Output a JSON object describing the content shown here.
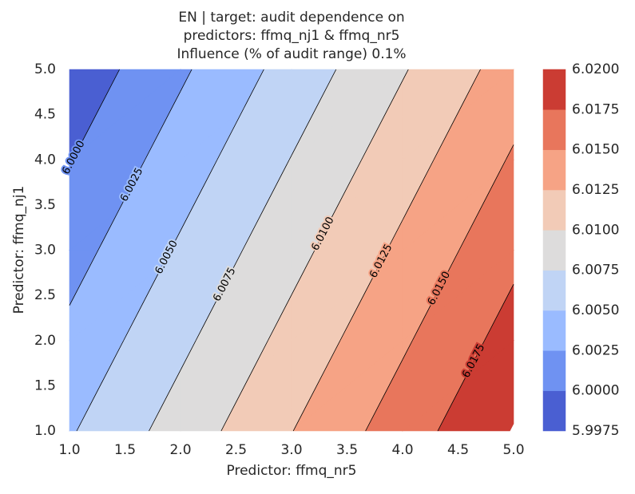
{
  "chart_data": {
    "type": "contourf",
    "title": [
      "EN | target: audit dependence on",
      "predictors: ffmq_nj1 & ffmq_nr5",
      "Influence (% of audit range) 0.1%"
    ],
    "xlabel": "Predictor: ffmq_nr5",
    "ylabel": "Predictor: ffmq_nj1",
    "x": [
      1,
      2,
      3,
      4,
      5
    ],
    "y": [
      1,
      2,
      3,
      4,
      5
    ],
    "z": [
      [
        6.00475,
        6.00859,
        6.01244,
        6.01628,
        6.02013
      ],
      [
        6.00313,
        6.00697,
        6.01082,
        6.01466,
        6.01851
      ],
      [
        6.00151,
        6.00535,
        6.0092,
        6.01304,
        6.01689
      ],
      [
        5.99989,
        6.00373,
        6.00758,
        6.01142,
        6.01527
      ],
      [
        5.99827,
        6.00211,
        6.00596,
        6.0098,
        6.01365
      ]
    ],
    "xlim": [
      1,
      5
    ],
    "ylim": [
      1,
      5
    ],
    "xticks": [
      {
        "value": 1,
        "label": "1.0"
      },
      {
        "value": 1.5,
        "label": "1.5"
      },
      {
        "value": 2,
        "label": "2.0"
      },
      {
        "value": 2.5,
        "label": "2.5"
      },
      {
        "value": 3,
        "label": "3.0"
      },
      {
        "value": 3.5,
        "label": "3.5"
      },
      {
        "value": 4,
        "label": "4.0"
      },
      {
        "value": 4.5,
        "label": "4.5"
      },
      {
        "value": 5,
        "label": "5.0"
      }
    ],
    "yticks": [
      {
        "value": 1,
        "label": "1.0"
      },
      {
        "value": 1.5,
        "label": "1.5"
      },
      {
        "value": 2,
        "label": "2.0"
      },
      {
        "value": 2.5,
        "label": "2.5"
      },
      {
        "value": 3,
        "label": "3.0"
      },
      {
        "value": 3.5,
        "label": "3.5"
      },
      {
        "value": 4,
        "label": "4.0"
      },
      {
        "value": 4.5,
        "label": "4.5"
      },
      {
        "value": 5,
        "label": "5.0"
      }
    ],
    "levels": [
      {
        "value": 5.9975,
        "label": "5.9975"
      },
      {
        "value": 6.0,
        "label": "6.0000"
      },
      {
        "value": 6.0025,
        "label": "6.0025"
      },
      {
        "value": 6.005,
        "label": "6.0050"
      },
      {
        "value": 6.0075,
        "label": "6.0075"
      },
      {
        "value": 6.01,
        "label": "6.0100"
      },
      {
        "value": 6.0125,
        "label": "6.0125"
      },
      {
        "value": 6.015,
        "label": "6.0150"
      },
      {
        "value": 6.0175,
        "label": "6.0175"
      },
      {
        "value": 6.02,
        "label": "6.0200"
      }
    ],
    "colors": [
      "#4a5fd2",
      "#6f92f2",
      "#9abbff",
      "#c0d4f5",
      "#dddcdc",
      "#f2cbb7",
      "#f6a385",
      "#e8765c",
      "#cb3c33"
    ]
  }
}
